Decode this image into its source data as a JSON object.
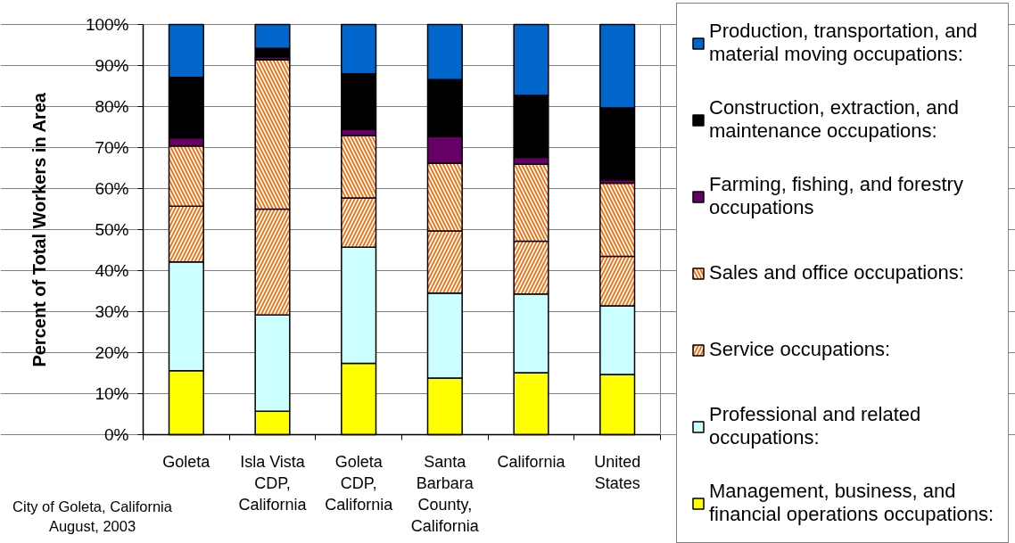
{
  "chart_data": {
    "type": "bar",
    "stacked": true,
    "ylabel": "Percent of Total Workers in Area",
    "categories": [
      "Goleta",
      "Isla Vista CDP, California",
      "Goleta CDP, California",
      "Santa Barbara County, California",
      "California",
      "United States"
    ],
    "ylim": [
      0,
      100
    ],
    "yticks": [
      {
        "value": 0,
        "label": "0%"
      },
      {
        "value": 10,
        "label": "10%"
      },
      {
        "value": 20,
        "label": "20%"
      },
      {
        "value": 30,
        "label": "30%"
      },
      {
        "value": 40,
        "label": "40%"
      },
      {
        "value": 50,
        "label": "50%"
      },
      {
        "value": 60,
        "label": "60%"
      },
      {
        "value": 70,
        "label": "70%"
      },
      {
        "value": 80,
        "label": "80%"
      },
      {
        "value": 90,
        "label": "90%"
      },
      {
        "value": 100,
        "label": "100%"
      }
    ],
    "grid": "y",
    "legend": "right",
    "annotations": [
      "City of Goleta, California",
      "August, 2003"
    ],
    "series": [
      {
        "name": "Management, business, and financial operations occupations:",
        "color": "#ffff00",
        "values": [
          15.6,
          5.7,
          17.4,
          13.8,
          15.1,
          14.7
        ]
      },
      {
        "name": "Professional and related occupations:",
        "color": "#ccffff",
        "values": [
          26.5,
          23.5,
          28.3,
          20.7,
          19.2,
          16.7
        ]
      },
      {
        "name": "Service occupations:",
        "color": "#ff6600",
        "values": [
          13.6,
          25.8,
          12.0,
          15.2,
          12.9,
          12.1
        ]
      },
      {
        "name": "Sales and office occupations:",
        "color": "#ff6600",
        "values": [
          14.7,
          36.4,
          15.2,
          16.5,
          18.7,
          17.8
        ]
      },
      {
        "name": "Farming, fishing, and forestry occupations",
        "color": "#660066",
        "values": [
          2.0,
          0.6,
          1.5,
          6.5,
          1.7,
          0.9
        ]
      },
      {
        "name": "Construction, extraction, and maintenance occupations:",
        "color": "#000000",
        "values": [
          14.7,
          2.2,
          13.6,
          13.9,
          15.1,
          17.5
        ]
      },
      {
        "name": "Production, transportation, and material moving occupations:",
        "color": "#0066cc",
        "values": [
          12.9,
          5.8,
          12.0,
          13.4,
          17.3,
          20.3
        ]
      }
    ]
  }
}
